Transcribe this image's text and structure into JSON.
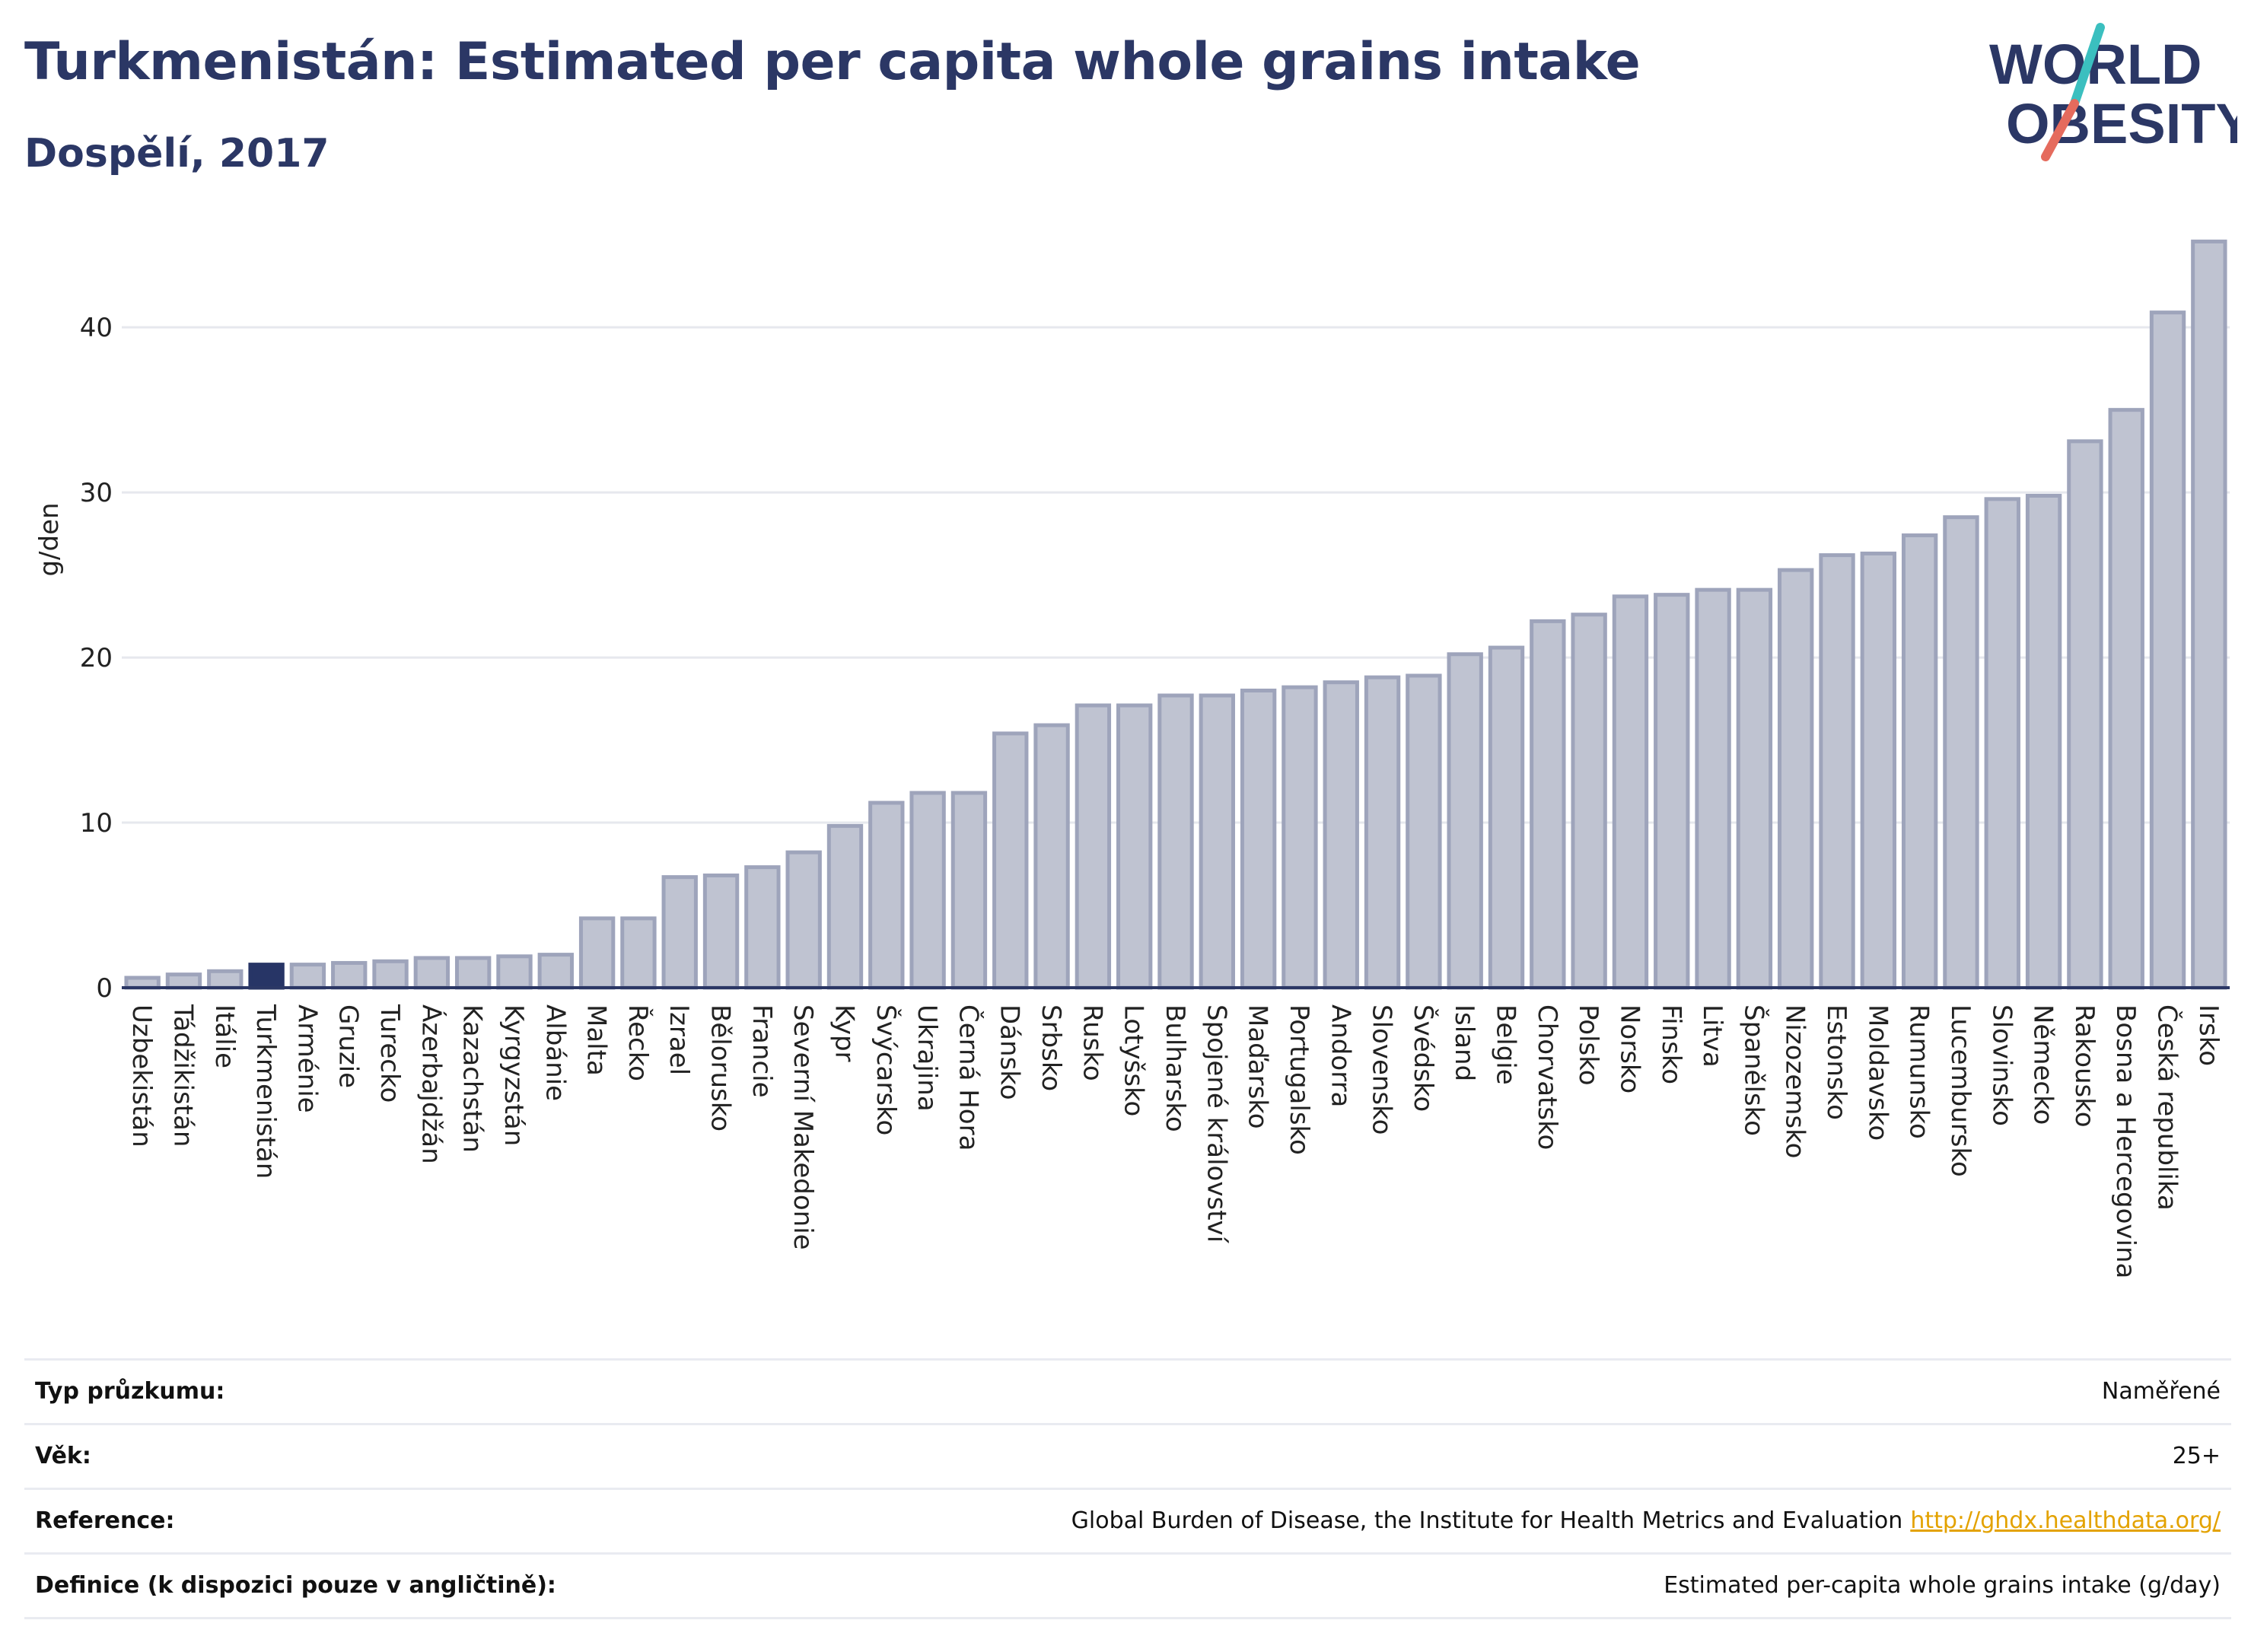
{
  "header": {
    "title": "Turkmenistán: Estimated per capita whole grains intake",
    "subtitle": "Dospělí, 2017"
  },
  "logo": {
    "line1": "WORLD",
    "line2": "OBESITY",
    "colors": {
      "text": "#2b3765",
      "slash_top": "#3bbfbf",
      "slash_bottom": "#e56b5d"
    }
  },
  "colors": {
    "bar_fill": "#bfc3d1",
    "bar_stroke": "#9ea4bb",
    "highlight_fill": "#273566",
    "axis": "#2b3765",
    "grid": "#e6e8ee"
  },
  "chart_data": {
    "type": "bar",
    "ylabel": "g/den",
    "ylim": [
      0,
      46
    ],
    "yticks": [
      0,
      10,
      20,
      30,
      40
    ],
    "grid": true,
    "highlight": "Turkmenistán",
    "categories": [
      "Uzbekistán",
      "Tádžikistán",
      "Itálie",
      "Turkmenistán",
      "Arménie",
      "Gruzie",
      "Turecko",
      "Ázerbajdžán",
      "Kazachstán",
      "Kyrgyzstán",
      "Albánie",
      "Malta",
      "Řecko",
      "Izrael",
      "Bělorusko",
      "Francie",
      "Severní Makedonie",
      "Kypr",
      "Švýcarsko",
      "Ukrajina",
      "Černá Hora",
      "Dánsko",
      "Srbsko",
      "Rusko",
      "Lotyšsko",
      "Bulharsko",
      "Spojené království",
      "Maďarsko",
      "Portugalsko",
      "Andorra",
      "Slovensko",
      "Švédsko",
      "Island",
      "Belgie",
      "Chorvatsko",
      "Polsko",
      "Norsko",
      "Finsko",
      "Litva",
      "Španělsko",
      "Nizozemsko",
      "Estonsko",
      "Moldavsko",
      "Rumunsko",
      "Lucembursko",
      "Slovinsko",
      "Německo",
      "Rakousko",
      "Bosna a Hercegovina",
      "Česká republika",
      "Irsko"
    ],
    "values": [
      0.6,
      0.8,
      1.0,
      1.4,
      1.4,
      1.5,
      1.6,
      1.8,
      1.8,
      1.9,
      2.0,
      4.2,
      4.2,
      6.7,
      6.8,
      7.3,
      8.2,
      9.8,
      11.2,
      11.8,
      11.8,
      15.4,
      15.9,
      17.1,
      17.1,
      17.7,
      17.7,
      18.0,
      18.2,
      18.5,
      18.8,
      18.9,
      20.2,
      20.6,
      22.2,
      22.6,
      23.7,
      23.8,
      24.1,
      24.1,
      25.3,
      26.2,
      26.3,
      27.4,
      28.5,
      29.6,
      29.8,
      33.1,
      35.0,
      40.9,
      45.2
    ]
  },
  "meta": {
    "rows": [
      {
        "label": "Typ průzkumu:",
        "value": "Naměřené",
        "link": ""
      },
      {
        "label": "Věk:",
        "value": "25+",
        "link": ""
      },
      {
        "label": "Reference:",
        "value": "Global Burden of Disease, the Institute for Health Metrics and Evaluation",
        "link": "http://ghdx.healthdata.org/"
      },
      {
        "label": "Definice (k dispozici pouze v angličtině):",
        "value": "Estimated per-capita whole grains intake (g/day)",
        "link": ""
      }
    ]
  }
}
